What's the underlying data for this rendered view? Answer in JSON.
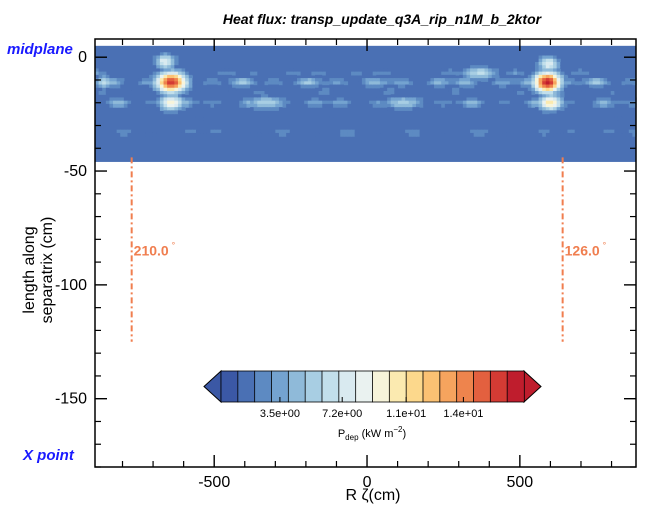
{
  "chart_data": {
    "type": "heatmap",
    "title": "Heat flux: transp_update_q3A_rip_n1M_b_2ktor",
    "xlabel": "R ζ(cm)",
    "ylabel_lines": [
      "length along",
      "separatrix (cm)"
    ],
    "xlim": [
      -890,
      880
    ],
    "ylim": [
      -180,
      8
    ],
    "x_ticks": [
      -500,
      0,
      500
    ],
    "y_ticks": [
      0,
      -50,
      -100,
      -150
    ],
    "side_labels": {
      "top": "midplane",
      "bottom": "X point"
    },
    "band": {
      "y_top": 5,
      "y_bottom": -46,
      "background_level": 0.06
    },
    "rows": [
      {
        "y": 0,
        "level": 0.04
      },
      {
        "y": -7,
        "level": 0.17
      },
      {
        "y": -11,
        "level": 0.3
      },
      {
        "y": -15,
        "level": 0.14
      },
      {
        "y": -20,
        "level": 0.25
      },
      {
        "y": -26,
        "level": 0.1
      },
      {
        "y": -33,
        "level": 0.16
      }
    ],
    "hotspots": [
      {
        "x": -640,
        "y": -11,
        "peak": 0.95,
        "wx": 50,
        "wy": 4.5
      },
      {
        "x": -640,
        "y": -20,
        "peak": 0.55,
        "wx": 40,
        "wy": 3.5
      },
      {
        "x": -660,
        "y": -2,
        "peak": 0.45,
        "wx": 35,
        "wy": 3.5
      },
      {
        "x": 590,
        "y": -11,
        "peak": 1.0,
        "wx": 45,
        "wy": 4.5
      },
      {
        "x": 600,
        "y": -20,
        "peak": 0.6,
        "wx": 40,
        "wy": 3.5
      },
      {
        "x": 595,
        "y": -3,
        "peak": 0.45,
        "wx": 35,
        "wy": 3.5
      },
      {
        "x": 370,
        "y": -7,
        "peak": 0.35,
        "wx": 60,
        "wy": 3
      },
      {
        "x": -330,
        "y": -20,
        "peak": 0.32,
        "wx": 70,
        "wy": 3
      },
      {
        "x": 120,
        "y": -20,
        "peak": 0.3,
        "wx": 70,
        "wy": 3
      },
      {
        "x": -860,
        "y": -11,
        "peak": 0.35,
        "wx": 30,
        "wy": 3
      }
    ],
    "markers": [
      {
        "x": -770,
        "y_top": -44,
        "y_bottom": -125,
        "label": "210.0",
        "label_y": -85
      },
      {
        "x": 640,
        "y_top": -44,
        "y_bottom": -125,
        "label": "126.0",
        "label_y": -85
      }
    ],
    "colorbar": {
      "title_parts": {
        "p": "P",
        "sub": "dep",
        "unit": " (kW m",
        "sup": "−2",
        "close": ")"
      },
      "tick_labels": [
        "3.5e+00",
        "7.2e+00",
        "1.1e+01",
        "1.4e+01"
      ],
      "tick_values": [
        3.5,
        7.2,
        11.0,
        14.4
      ],
      "range": [
        0,
        18
      ],
      "colors": [
        "#3b58a5",
        "#4a70b4",
        "#5d8ac2",
        "#74a3d0",
        "#8fbad9",
        "#a8cee3",
        "#c2dfeb",
        "#d9eaf0",
        "#eaf2f0",
        "#f7f4da",
        "#fbeab0",
        "#fcd88c",
        "#fbc173",
        "#f6a45e",
        "#ee844d",
        "#e3603f",
        "#d43b34",
        "#bf1d2d"
      ]
    }
  }
}
